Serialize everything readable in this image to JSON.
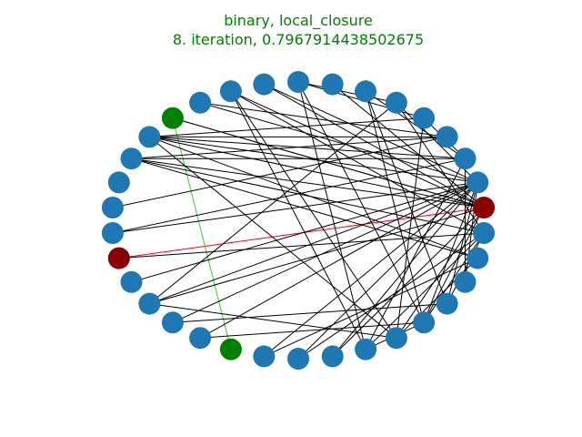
{
  "title": {
    "line1": "binary, local_closure",
    "line2": "8. iteration, 0.7967914438502675",
    "color": "#008000"
  },
  "colors": {
    "node_default": "#1f77b4",
    "node_green": "#008000",
    "node_red": "#8b0000",
    "edge_default": "#000000",
    "edge_red": "#ff0000",
    "edge_green": "#32cd32"
  },
  "graph": {
    "layout": "circular",
    "node_count": 34,
    "highlighted_nodes": [
      {
        "index": 4,
        "color": "node_green"
      },
      {
        "index": 15,
        "color": "node_green"
      },
      {
        "index": 10,
        "color": "node_red"
      },
      {
        "index": 26,
        "color": "node_red"
      }
    ],
    "edges": [
      [
        10,
        26,
        "edge_red"
      ],
      [
        4,
        15,
        "edge_green"
      ],
      [
        5,
        28
      ],
      [
        5,
        29
      ],
      [
        5,
        27
      ],
      [
        5,
        30
      ],
      [
        5,
        26
      ],
      [
        6,
        29
      ],
      [
        6,
        28
      ],
      [
        6,
        25
      ],
      [
        6,
        26
      ],
      [
        3,
        27
      ],
      [
        3,
        29
      ],
      [
        4,
        26
      ],
      [
        5,
        24
      ],
      [
        6,
        24
      ],
      [
        0,
        30
      ],
      [
        0,
        31
      ],
      [
        1,
        26
      ],
      [
        1,
        27
      ],
      [
        2,
        25
      ],
      [
        2,
        26
      ],
      [
        2,
        20
      ],
      [
        2,
        19
      ],
      [
        33,
        26
      ],
      [
        32,
        21
      ],
      [
        32,
        22
      ],
      [
        32,
        28
      ],
      [
        31,
        27
      ],
      [
        31,
        25
      ],
      [
        31,
        12
      ],
      [
        30,
        28
      ],
      [
        8,
        29
      ],
      [
        9,
        28
      ],
      [
        11,
        27
      ],
      [
        12,
        27
      ],
      [
        10,
        25
      ],
      [
        16,
        24
      ],
      [
        13,
        22
      ],
      [
        14,
        21
      ],
      [
        17,
        25
      ],
      [
        18,
        27
      ],
      [
        19,
        28
      ],
      [
        19,
        21
      ],
      [
        20,
        26
      ],
      [
        20,
        30
      ],
      [
        20,
        12
      ],
      [
        21,
        26
      ],
      [
        21,
        27
      ],
      [
        21,
        0
      ],
      [
        23,
        27
      ],
      [
        23,
        28
      ],
      [
        22,
        25
      ],
      [
        22,
        27
      ],
      [
        16,
        27
      ],
      [
        5,
        20
      ],
      [
        19,
        25
      ],
      [
        17,
        27
      ],
      [
        18,
        26
      ],
      [
        20,
        24
      ],
      [
        9,
        27
      ],
      [
        14,
        27
      ],
      [
        21,
        25
      ],
      [
        0,
        19
      ],
      [
        4,
        26
      ],
      [
        13,
        27
      ],
      [
        12,
        26
      ]
    ]
  }
}
